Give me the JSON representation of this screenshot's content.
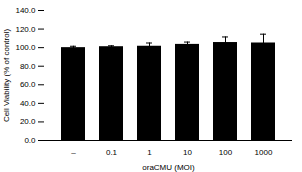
{
  "chart_data": {
    "type": "bar",
    "categories": [
      "–",
      "0.1",
      "1",
      "10",
      "100",
      "1000"
    ],
    "values": [
      100.0,
      101.0,
      101.5,
      103.5,
      105.5,
      105.0
    ],
    "errors": [
      1.5,
      1.0,
      3.5,
      2.5,
      6.0,
      9.5
    ],
    "color": "#000000",
    "xlabel": "oraCMU (MOI)",
    "ylabel": "Cell Viability (% of control)",
    "ylim": [
      0,
      140
    ],
    "yticks": [
      {
        "value": 0,
        "label": "0.0"
      },
      {
        "value": 20,
        "label": "20.0"
      },
      {
        "value": 40,
        "label": "40.0"
      },
      {
        "value": 60,
        "label": "60.0"
      },
      {
        "value": 80,
        "label": "80.0"
      },
      {
        "value": 100,
        "label": "100.0"
      },
      {
        "value": 120,
        "label": "120.0"
      },
      {
        "value": 140,
        "label": "140.0"
      }
    ],
    "grid": false
  }
}
